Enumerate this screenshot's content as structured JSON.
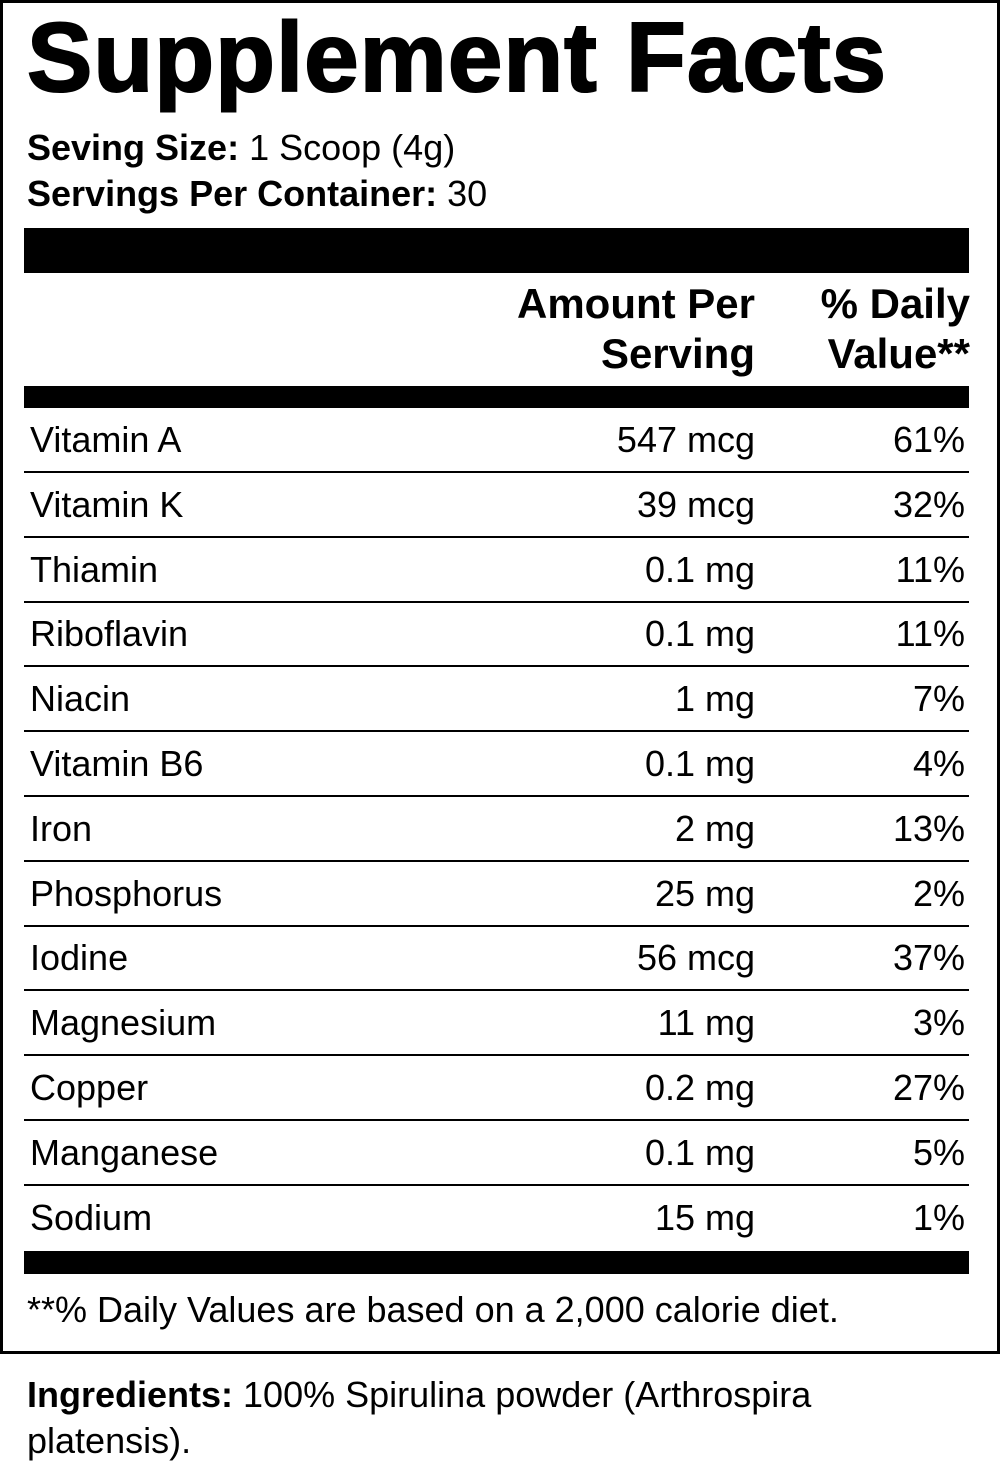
{
  "header": {
    "title": "Supplement Facts"
  },
  "serving": {
    "size_label": "Seving Size:",
    "size_value": "1 Scoop (4g)",
    "per_container_label": "Servings Per Container:",
    "per_container_value": "30"
  },
  "table": {
    "columns": [
      "Amount Per Serving",
      "% Daily Value**"
    ],
    "rows": [
      [
        "Vitamin A",
        "547 mcg",
        "61%"
      ],
      [
        "Vitamin K",
        "39 mcg",
        "32%"
      ],
      [
        "Thiamin",
        "0.1 mg",
        "11%"
      ],
      [
        "Riboflavin",
        "0.1 mg",
        "11%"
      ],
      [
        "Niacin",
        "1 mg",
        "7%"
      ],
      [
        "Vitamin B6",
        "0.1 mg",
        "4%"
      ],
      [
        "Iron",
        "2 mg",
        "13%"
      ],
      [
        "Phosphorus",
        "25 mg",
        "2%"
      ],
      [
        "Iodine",
        "56 mcg",
        "37%"
      ],
      [
        "Magnesium",
        "11 mg",
        "3%"
      ],
      [
        "Copper",
        "0.2 mg",
        "27%"
      ],
      [
        "Manganese",
        "0.1 mg",
        "5%"
      ],
      [
        "Sodium",
        "15 mg",
        "1%"
      ]
    ]
  },
  "footnote": "**% Daily Values are based on a 2,000 calorie diet.",
  "ingredients": {
    "label": "Ingredients:",
    "text": "100% Spirulina powder (Arthrospira platensis)."
  }
}
